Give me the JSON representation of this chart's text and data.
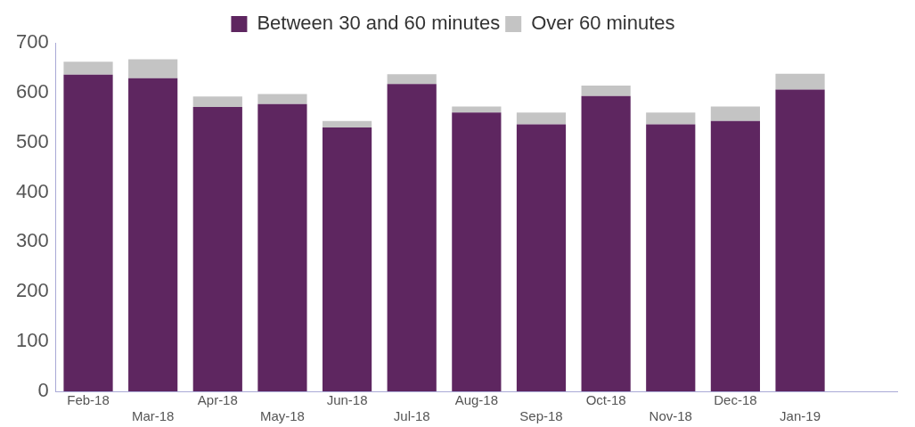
{
  "chart_data": {
    "type": "bar",
    "stacked": true,
    "legend": "top",
    "grid": false,
    "categories": [
      "Feb-18",
      "Mar-18",
      "Apr-18",
      "May-18",
      "Jun-18",
      "Jul-18",
      "Aug-18",
      "Sep-18",
      "Oct-18",
      "Nov-18",
      "Dec-18",
      "Jan-19",
      null
    ],
    "series": [
      {
        "name": "Between 30 and 60 minutes",
        "color": "#5e2660",
        "values": [
          636,
          629,
          571,
          577,
          530,
          617,
          560,
          536,
          593,
          536,
          543,
          606,
          null
        ]
      },
      {
        "name": "Over 60 minutes",
        "color": "#c4c4c4",
        "values": [
          26,
          38,
          21,
          20,
          13,
          20,
          12,
          24,
          21,
          24,
          29,
          32,
          null
        ]
      }
    ],
    "ylim": [
      0,
      700
    ],
    "yticks": [
      0,
      100,
      200,
      300,
      400,
      500,
      600,
      700
    ]
  }
}
